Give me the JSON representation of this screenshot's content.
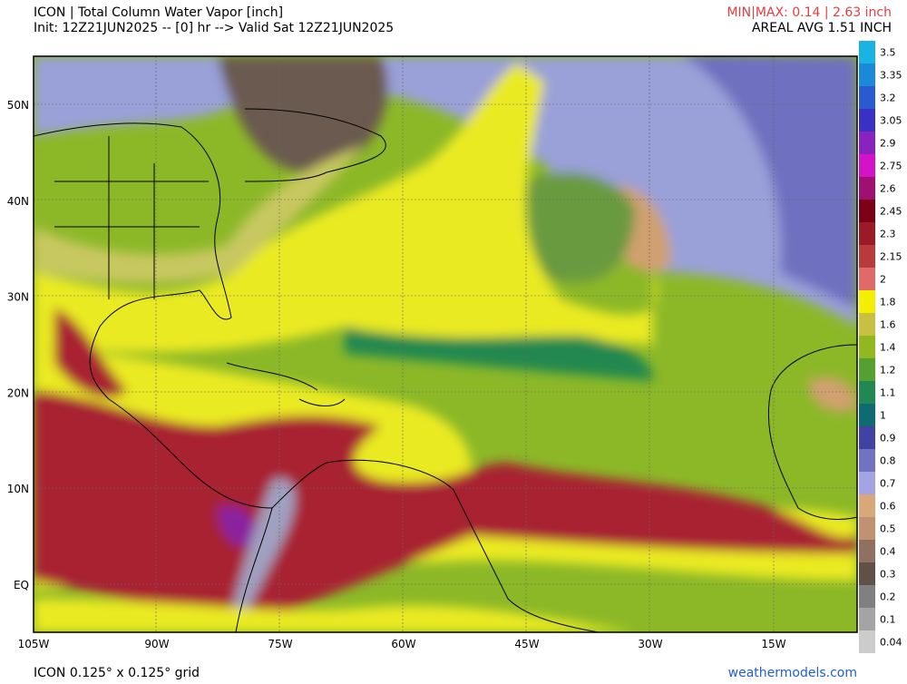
{
  "header": {
    "title": "ICON | Total Column Water Vapor [inch]",
    "init": "Init: 12Z21JUN2025 -- [0] hr --> Valid Sat 12Z21JUN2025",
    "minmax": "MIN|MAX: 0.14 | 2.63 inch",
    "areal_avg": "AREAL AVG 1.51 INCH"
  },
  "axes": {
    "lat_labels": [
      "50N",
      "40N",
      "30N",
      "20N",
      "10N",
      "EQ"
    ],
    "lon_labels": [
      "105W",
      "90W",
      "75W",
      "60W",
      "45W",
      "30W",
      "15W"
    ]
  },
  "colorbar": {
    "ticks": [
      3.5,
      3.35,
      3.2,
      3.05,
      2.9,
      2.75,
      2.6,
      2.45,
      2.3,
      2.15,
      2,
      1.8,
      1.6,
      1.4,
      1.2,
      1.1,
      1,
      0.9,
      0.8,
      0.7,
      0.6,
      0.5,
      0.4,
      0.3,
      0.2,
      0.1,
      0.04
    ],
    "colors": [
      "#19b4e4",
      "#1a8ad8",
      "#2a5ad0",
      "#3a30c4",
      "#8a22c0",
      "#d412c8",
      "#a01070",
      "#7a0016",
      "#9c1a28",
      "#b83a3a",
      "#e06a6a",
      "#f2f000",
      "#c8c040",
      "#92b820",
      "#54a030",
      "#208850",
      "#106a72",
      "#4242a2",
      "#7272c2",
      "#a4a4e4",
      "#d8a878",
      "#c09272",
      "#907060",
      "#605048",
      "#808080",
      "#a4a4a4",
      "#cccccc"
    ]
  },
  "footer": {
    "grid": "ICON 0.125° x 0.125° grid",
    "site": "weathermodels.com"
  }
}
